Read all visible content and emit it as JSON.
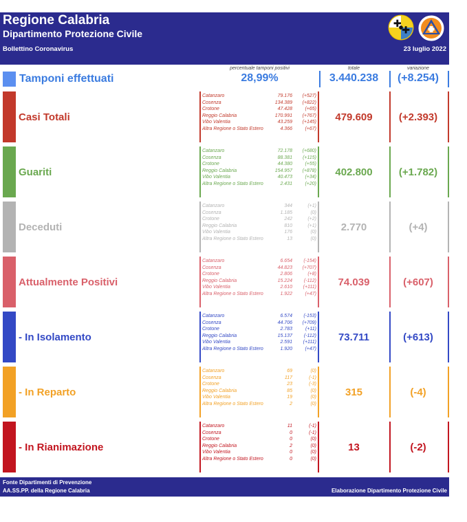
{
  "header": {
    "title": "Regione Calabria",
    "subtitle": "Dipartimento Protezione Civile",
    "bulletin": "Bollettino Coronavirus",
    "date": "23 luglio 2022"
  },
  "columns": {
    "percent_label": "percentuale tamponi positivi",
    "total_label": "totale",
    "variation_label": "variazione"
  },
  "tamponi": {
    "label": "Tamponi effettuati",
    "percent": "28,99%",
    "total": "3.440.238",
    "variation": "(+8.254)",
    "color": "#3a7be0"
  },
  "sections": [
    {
      "label": "Casi Totali",
      "color": "#c2392b",
      "total": "479.609",
      "variation": "(+2.393)",
      "rows": [
        {
          "p": "Catanzaro",
          "v": "79.176",
          "d": "(+527)"
        },
        {
          "p": "Cosenza",
          "v": "134.389",
          "d": "(+822)"
        },
        {
          "p": "Crotone",
          "v": "47.428",
          "d": "(+65)"
        },
        {
          "p": "Reggio Calabria",
          "v": "170.991",
          "d": "(+767)"
        },
        {
          "p": "Vibo Valentia",
          "v": "43.259",
          "d": "(+145)"
        },
        {
          "p": "Altra Regione o Stato Estero",
          "v": "4.366",
          "d": "(+67)"
        }
      ]
    },
    {
      "label": "Guariti",
      "color": "#6aa84f",
      "total": "402.800",
      "variation": "(+1.782)",
      "rows": [
        {
          "p": "Catanzaro",
          "v": "72.178",
          "d": "(+680)"
        },
        {
          "p": "Cosenza",
          "v": "88.381",
          "d": "(+115)"
        },
        {
          "p": "Crotone",
          "v": "44.380",
          "d": "(+55)"
        },
        {
          "p": "Reggio Calabria",
          "v": "154.957",
          "d": "(+878)"
        },
        {
          "p": "Vibo Valentia",
          "v": "40.473",
          "d": "(+34)"
        },
        {
          "p": "Altra Regione o Stato Estero",
          "v": "2.431",
          "d": "(+20)"
        }
      ]
    },
    {
      "label": "Deceduti",
      "color": "#b3b3b3",
      "total": "2.770",
      "variation": "(+4)",
      "rows": [
        {
          "p": "Catanzaro",
          "v": "344",
          "d": "(+1)"
        },
        {
          "p": "Cosenza",
          "v": "1.185",
          "d": "(0)"
        },
        {
          "p": "Crotone",
          "v": "242",
          "d": "(+2)"
        },
        {
          "p": "Reggio Calabria",
          "v": "810",
          "d": "(+1)"
        },
        {
          "p": "Vibo Valentia",
          "v": "176",
          "d": "(0)"
        },
        {
          "p": "Altra Regione o Stato Estero",
          "v": "13",
          "d": "(0)"
        }
      ]
    },
    {
      "label": "Attualmente Positivi",
      "color": "#d9606a",
      "total": "74.039",
      "variation": "(+607)",
      "rows": [
        {
          "p": "Catanzaro",
          "v": "6.654",
          "d": "(-154)"
        },
        {
          "p": "Cosenza",
          "v": "44.823",
          "d": "(+707)"
        },
        {
          "p": "Crotone",
          "v": "2.806",
          "d": "(+8)"
        },
        {
          "p": "Reggio Calabria",
          "v": "15.224",
          "d": "(-112)"
        },
        {
          "p": "Vibo Valentia",
          "v": "2.610",
          "d": "(+111)"
        },
        {
          "p": "Altra Regione o Stato Estero",
          "v": "1.922",
          "d": "(+47)"
        }
      ]
    },
    {
      "label": " - In Isolamento",
      "color": "#3349c5",
      "total": "73.711",
      "variation": "(+613)",
      "rows": [
        {
          "p": "Catanzaro",
          "v": "6.574",
          "d": "(-153)"
        },
        {
          "p": "Cosenza",
          "v": "44.706",
          "d": "(+709)"
        },
        {
          "p": "Crotone",
          "v": "2.783",
          "d": "(+11)"
        },
        {
          "p": "Reggio Calabria",
          "v": "15.137",
          "d": "(-112)"
        },
        {
          "p": "Vibo Valentia",
          "v": "2.591",
          "d": "(+111)"
        },
        {
          "p": "Altra Regione o Stato Estero",
          "v": "1.920",
          "d": "(+47)"
        }
      ]
    },
    {
      "label": " - In Reparto",
      "color": "#f2a125",
      "total": "315",
      "variation": "(-4)",
      "rows": [
        {
          "p": "Catanzaro",
          "v": "69",
          "d": "(0)"
        },
        {
          "p": "Cosenza",
          "v": "117",
          "d": "(-1)"
        },
        {
          "p": "Crotone",
          "v": "23",
          "d": "(-3)"
        },
        {
          "p": "Reggio Calabria",
          "v": "85",
          "d": "(0)"
        },
        {
          "p": "Vibo Valentia",
          "v": "19",
          "d": "(0)"
        },
        {
          "p": "Altra Regione o Stato Estero",
          "v": "2",
          "d": "(0)"
        }
      ]
    },
    {
      "label": " - In Rianimazione",
      "color": "#c2151f",
      "total": "13",
      "variation": "(-2)",
      "rows": [
        {
          "p": "Catanzaro",
          "v": "11",
          "d": "(-1)"
        },
        {
          "p": "Cosenza",
          "v": "0",
          "d": "(-1)"
        },
        {
          "p": "Crotone",
          "v": "0",
          "d": "(0)"
        },
        {
          "p": "Reggio Calabria",
          "v": "2",
          "d": "(0)"
        },
        {
          "p": "Vibo Valentia",
          "v": "0",
          "d": "(0)"
        },
        {
          "p": "Altra Regione o Stato Estero",
          "v": "0",
          "d": "(0)"
        }
      ]
    }
  ],
  "footer": {
    "line1": "Fonte Dipartimenti di Prevenzione",
    "line2": "AA.SS.PP.  della Regione Calabria",
    "credit": "Elaborazione Dipartimento Protezione Civile"
  }
}
